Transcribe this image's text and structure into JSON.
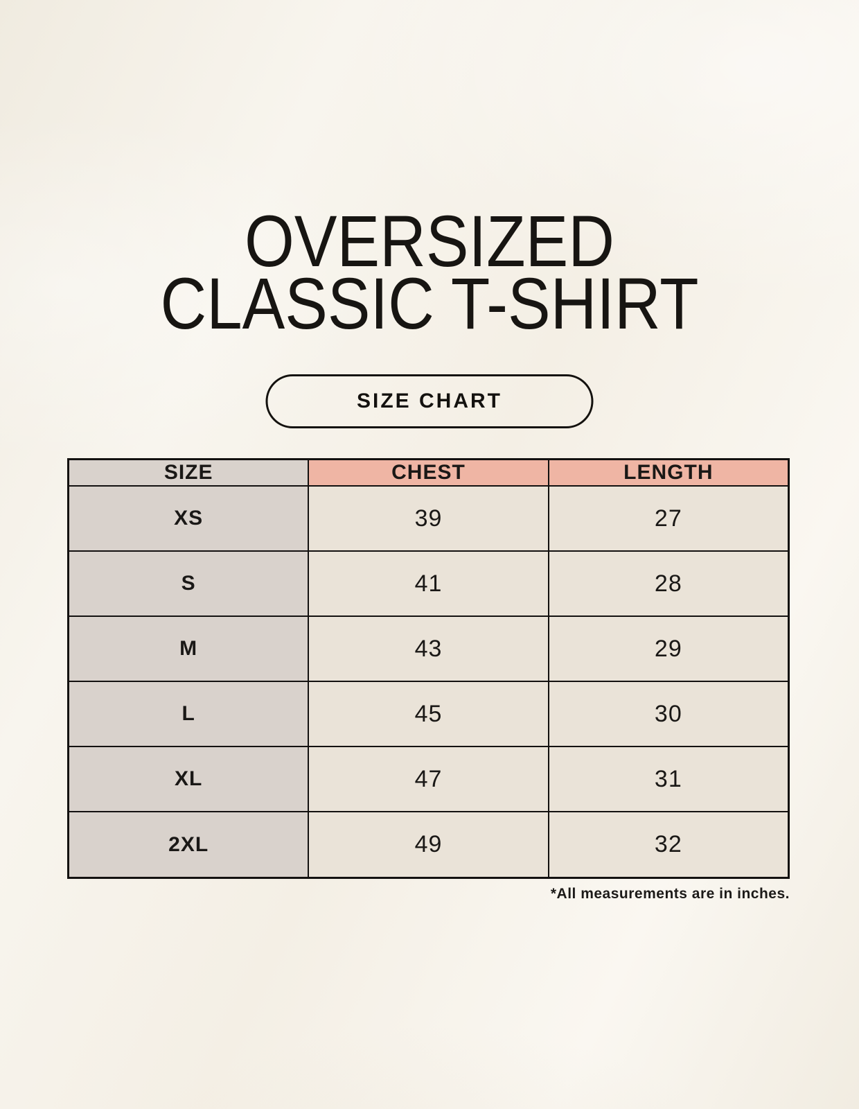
{
  "title": {
    "line1": "OVERSIZED",
    "line2": "CLASSIC T-SHIRT"
  },
  "size_chart_button": {
    "label": "SIZE CHART"
  },
  "table": {
    "columns": [
      "SIZE",
      "CHEST",
      "LENGTH"
    ],
    "rows": [
      {
        "size": "XS",
        "chest": "39",
        "length": "27"
      },
      {
        "size": "S",
        "chest": "41",
        "length": "28"
      },
      {
        "size": "M",
        "chest": "43",
        "length": "29"
      },
      {
        "size": "L",
        "chest": "45",
        "length": "30"
      },
      {
        "size": "XL",
        "chest": "47",
        "length": "31"
      },
      {
        "size": "2XL",
        "chest": "49",
        "length": "32"
      }
    ]
  },
  "footnote": "*All measurements are in inches.",
  "colors": {
    "background": "#f6f2e9",
    "header_size_bg": "#d9d2cc",
    "header_measure_bg": "#efb5a4",
    "row_size_bg": "#d9d2cc",
    "row_data_bg": "#eae3d8",
    "border": "#131110",
    "text": "#1a1816"
  },
  "chart_data": {
    "type": "table",
    "title": "OVERSIZED CLASSIC T-SHIRT",
    "subtitle": "SIZE CHART",
    "columns": [
      "SIZE",
      "CHEST",
      "LENGTH"
    ],
    "rows": [
      [
        "XS",
        39,
        27
      ],
      [
        "S",
        41,
        28
      ],
      [
        "M",
        43,
        29
      ],
      [
        "L",
        45,
        30
      ],
      [
        "XL",
        47,
        31
      ],
      [
        "2XL",
        49,
        32
      ]
    ],
    "units": "inches",
    "note": "*All measurements are in inches."
  }
}
